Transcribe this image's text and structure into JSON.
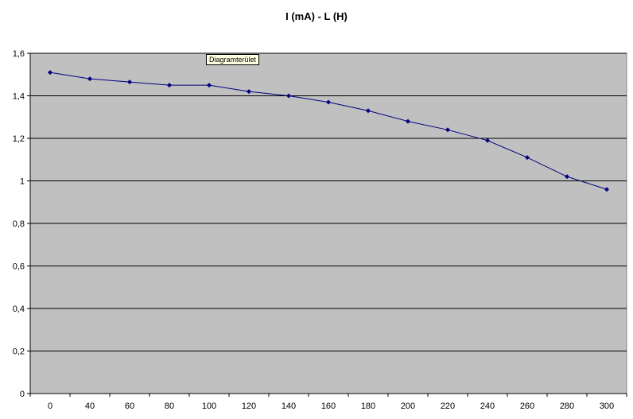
{
  "chart_data": {
    "type": "line",
    "title": "I (mA) - L (H)",
    "xlabel": "",
    "ylabel": "",
    "x": [
      0,
      40,
      60,
      80,
      100,
      120,
      140,
      160,
      180,
      200,
      220,
      240,
      260,
      280,
      300
    ],
    "series": [
      {
        "values": [
          1.51,
          1.48,
          1.465,
          1.45,
          1.45,
          1.42,
          1.4,
          1.37,
          1.33,
          1.28,
          1.24,
          1.19,
          1.11,
          1.02,
          0.96
        ],
        "color": "#00007f"
      }
    ],
    "ylim": [
      0,
      1.6
    ],
    "yticks": [
      "0",
      "0,2",
      "0,4",
      "0,6",
      "0,8",
      "1",
      "1,2",
      "1,4",
      "1,6"
    ],
    "xticks": [
      "0",
      "40",
      "60",
      "80",
      "100",
      "120",
      "140",
      "160",
      "180",
      "200",
      "220",
      "240",
      "260",
      "280",
      "300"
    ],
    "grid": true,
    "plot_background": "#c0c0c0",
    "gridline_color": "#000000",
    "marker": "diamond"
  },
  "tooltip": {
    "text": "Diagramterület"
  }
}
